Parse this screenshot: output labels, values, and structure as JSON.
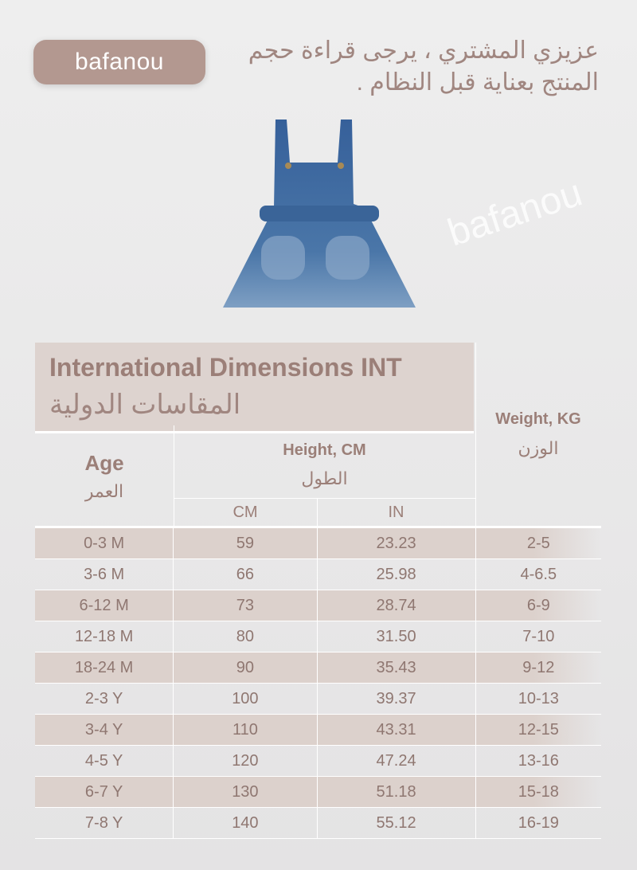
{
  "brand": {
    "logo_text": "bafanou",
    "watermark_text": "bafanou"
  },
  "intro_text": "عزيزي المشتري ، يرجى قراءة حجم المنتج بعناية قبل النظام .",
  "table": {
    "title_en": "International Dimensions INT",
    "title_ar": "المقاسات الدولية",
    "headers": {
      "age_en": "Age",
      "age_ar": "العمر",
      "height_en": "Height, CM",
      "height_ar": "الطول",
      "cm": "CM",
      "in": "IN",
      "weight_en": "Weight, KG",
      "weight_ar": "الوزن"
    },
    "rows": [
      [
        "0-3 M",
        "59",
        "23.23",
        "2-5"
      ],
      [
        "3-6 M",
        "66",
        "25.98",
        "4-6.5"
      ],
      [
        "6-12 M",
        "73",
        "28.74",
        "6-9"
      ],
      [
        "12-18 M",
        "80",
        "31.50",
        "7-10"
      ],
      [
        "18-24 M",
        "90",
        "35.43",
        "9-12"
      ],
      [
        "2-3 Y",
        "100",
        "39.37",
        "10-13"
      ],
      [
        "3-4 Y",
        "110",
        "43.31",
        "12-15"
      ],
      [
        "4-5 Y",
        "120",
        "47.24",
        "13-16"
      ],
      [
        "6-7 Y",
        "130",
        "51.18",
        "15-18"
      ],
      [
        "7-8 Y",
        "140",
        "55.12",
        "16-19"
      ]
    ]
  },
  "colors": {
    "text": "#9b7f78",
    "logo_bg": "#b39890",
    "stripe": "#dcd1cc",
    "denim": "#3f6a9c"
  }
}
